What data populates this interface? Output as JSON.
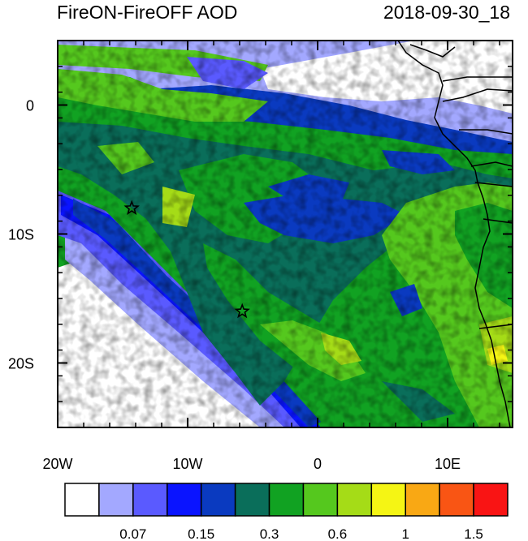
{
  "title": "FireON-FireOFF AOD",
  "timestamp": "2018-09-30_18",
  "axes": {
    "x_ticks": [
      {
        "lon": -20,
        "label": "20W"
      },
      {
        "lon": -10,
        "label": "10W"
      },
      {
        "lon": 0,
        "label": "0"
      },
      {
        "lon": 10,
        "label": "10E"
      }
    ],
    "y_ticks": [
      {
        "lat": 0,
        "label": "0"
      },
      {
        "lat": -10,
        "label": "10S"
      },
      {
        "lat": -20,
        "label": "20S"
      }
    ],
    "lon_range": [
      -20,
      15
    ],
    "lat_range": [
      -25,
      5
    ]
  },
  "markers": [
    {
      "type": "star",
      "lon": -14.3,
      "lat": -8.0
    },
    {
      "type": "star",
      "lon": -5.8,
      "lat": -16.0
    }
  ],
  "colorbar": {
    "colors": [
      "#ffffff",
      "#a3a8ff",
      "#5a5aff",
      "#0a14ff",
      "#0a3ac0",
      "#0a6e5a",
      "#11a222",
      "#55c81e",
      "#a5dc17",
      "#f5f514",
      "#f9a814",
      "#f95514",
      "#f91414"
    ],
    "labels": [
      {
        "after_box": 2,
        "text": "0.07"
      },
      {
        "after_box": 4,
        "text": "0.15"
      },
      {
        "after_box": 6,
        "text": "0.3"
      },
      {
        "after_box": 8,
        "text": "0.6"
      },
      {
        "after_box": 10,
        "text": "1"
      },
      {
        "after_box": 12,
        "text": "1.5"
      }
    ]
  }
}
